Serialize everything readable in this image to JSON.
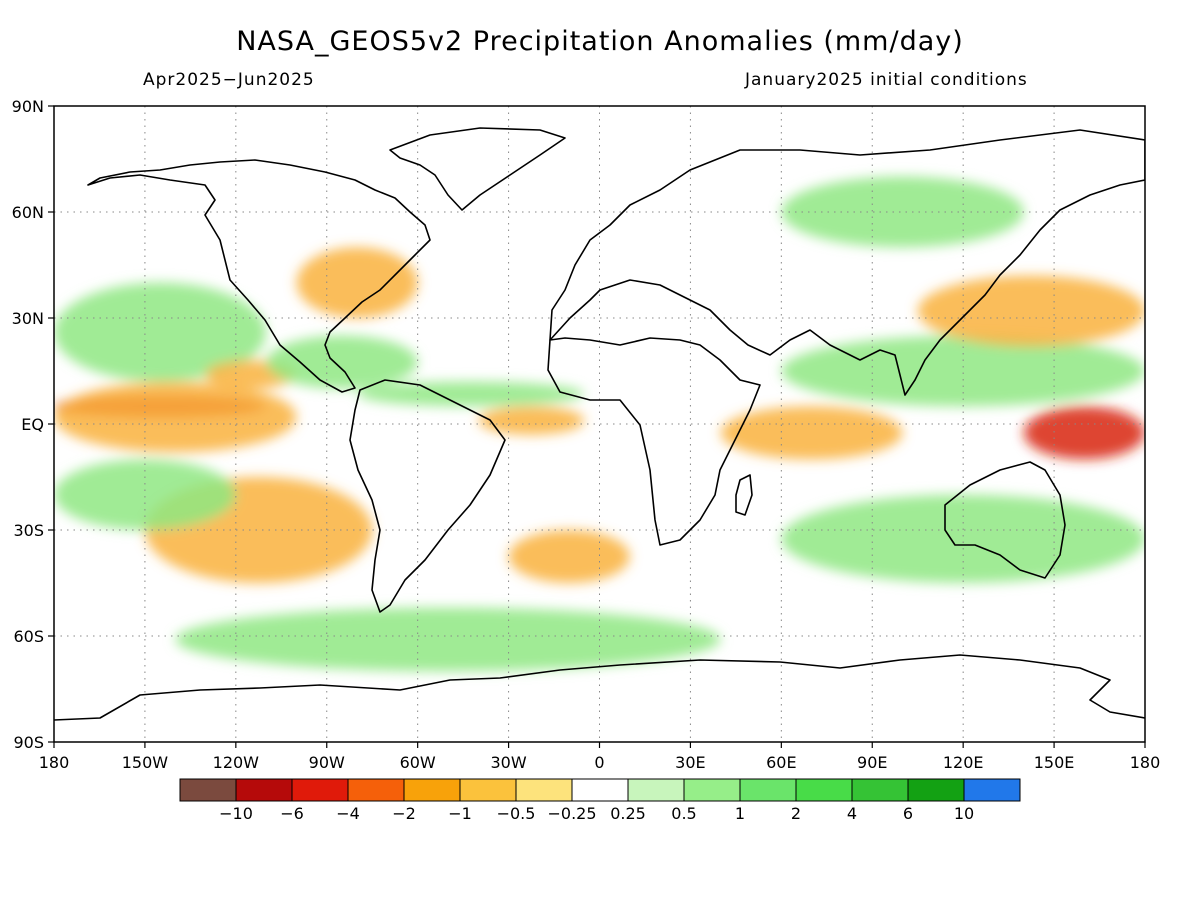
{
  "figure": {
    "title": "NASA_GEOS5v2 Precipitation Anomalies (mm/day)",
    "period": "Apr2025−Jun2025",
    "initial_conditions": "January2025 initial conditions"
  },
  "colors": {
    "coastline": "#000000",
    "grid": "#888888"
  },
  "map_data": {
    "projection": "equirectangular",
    "lon_range": [
      -180,
      180
    ],
    "lat_range": [
      -90,
      90
    ],
    "lat_ticks": [
      {
        "value": 90,
        "label": "90N"
      },
      {
        "value": 60,
        "label": "60N"
      },
      {
        "value": 30,
        "label": "30N"
      },
      {
        "value": 0,
        "label": "EQ"
      },
      {
        "value": -30,
        "label": "30S"
      },
      {
        "value": -60,
        "label": "60S"
      },
      {
        "value": -90,
        "label": "90S"
      }
    ],
    "lon_ticks": [
      {
        "value": -180,
        "label": "180"
      },
      {
        "value": -150,
        "label": "150W"
      },
      {
        "value": -120,
        "label": "120W"
      },
      {
        "value": -90,
        "label": "90W"
      },
      {
        "value": -60,
        "label": "60W"
      },
      {
        "value": -30,
        "label": "30W"
      },
      {
        "value": 0,
        "label": "0"
      },
      {
        "value": 30,
        "label": "30E"
      },
      {
        "value": 60,
        "label": "60E"
      },
      {
        "value": 90,
        "label": "90E"
      },
      {
        "value": 120,
        "label": "120E"
      },
      {
        "value": 150,
        "label": "150E"
      },
      {
        "value": 180,
        "label": "180"
      }
    ],
    "grid": "dotted",
    "colorbar": {
      "colors": [
        "#7b4a3e",
        "#b50a0a",
        "#e01a0a",
        "#f5600a",
        "#f8a20a",
        "#fbc23c",
        "#fde37c",
        "#ffffff",
        "#c8f5bc",
        "#96ee89",
        "#6ae46a",
        "#48dc48",
        "#35c335",
        "#13a113",
        "#2178ea"
      ],
      "labels": [
        "−10",
        "−6",
        "−4",
        "−2",
        "−1",
        "−0.5",
        "−0.25",
        "0.25",
        "0.5",
        "1",
        "2",
        "4",
        "6",
        "10"
      ]
    },
    "anomaly_regions": [
      {
        "level": "strong_negative",
        "lon": [
          -180,
          -110
        ],
        "lat": [
          2,
          8
        ]
      },
      {
        "level": "negative",
        "lon": [
          -180,
          -100
        ],
        "lat": [
          -8,
          12
        ]
      },
      {
        "level": "positive",
        "lon": [
          -180,
          -110
        ],
        "lat": [
          12,
          40
        ]
      },
      {
        "level": "negative",
        "lon": [
          -130,
          -100
        ],
        "lat": [
          10,
          18
        ]
      },
      {
        "level": "positive",
        "lon": [
          -110,
          -60
        ],
        "lat": [
          10,
          25
        ]
      },
      {
        "level": "negative",
        "lon": [
          -40,
          -5
        ],
        "lat": [
          -3,
          5
        ]
      },
      {
        "level": "positive",
        "lon": [
          -80,
          -5
        ],
        "lat": [
          5,
          12
        ]
      },
      {
        "level": "negative",
        "lon": [
          40,
          100
        ],
        "lat": [
          -10,
          5
        ]
      },
      {
        "level": "positive",
        "lon": [
          60,
          180
        ],
        "lat": [
          5,
          25
        ]
      },
      {
        "level": "strong_negative",
        "lon": [
          140,
          180
        ],
        "lat": [
          -10,
          5
        ]
      },
      {
        "level": "negative",
        "lon": [
          105,
          180
        ],
        "lat": [
          22,
          42
        ]
      },
      {
        "level": "negative",
        "lon": [
          -150,
          -75
        ],
        "lat": [
          -45,
          -15
        ]
      },
      {
        "level": "negative",
        "lon": [
          -30,
          10
        ],
        "lat": [
          -45,
          -30
        ]
      },
      {
        "level": "positive",
        "lon": [
          -180,
          -120
        ],
        "lat": [
          -30,
          -10
        ]
      },
      {
        "level": "positive",
        "lon": [
          60,
          180
        ],
        "lat": [
          -45,
          -20
        ]
      },
      {
        "level": "positive",
        "lon": [
          -140,
          40
        ],
        "lat": [
          -70,
          -52
        ]
      },
      {
        "level": "negative",
        "lon": [
          -100,
          -60
        ],
        "lat": [
          30,
          50
        ]
      },
      {
        "level": "positive",
        "lon": [
          60,
          140
        ],
        "lat": [
          50,
          70
        ]
      }
    ]
  }
}
